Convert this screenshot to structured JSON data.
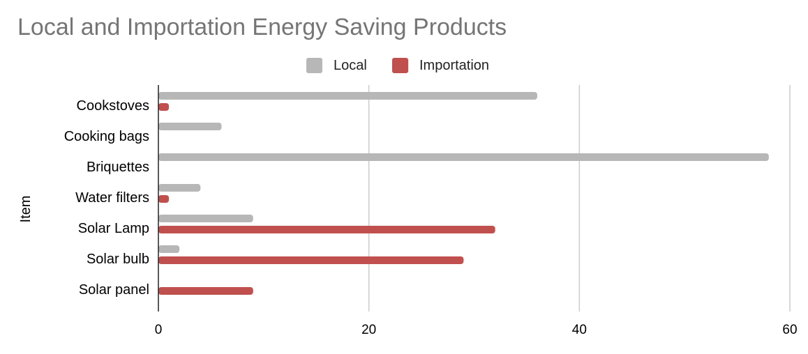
{
  "chart_data": {
    "type": "bar",
    "orientation": "horizontal",
    "title": "Local and Importation Energy Saving Products",
    "ylabel": "Item",
    "xlabel": "",
    "categories": [
      "Cookstoves",
      "Cooking bags",
      "Briquettes",
      "Water filters",
      "Solar Lamp",
      "Solar bulb",
      "Solar panel"
    ],
    "series": [
      {
        "name": "Local",
        "color": "#b7b7b7",
        "values": [
          36,
          6,
          58,
          4,
          9,
          2,
          0
        ]
      },
      {
        "name": "Importation",
        "color": "#c0504d",
        "values": [
          1,
          0,
          0,
          1,
          32,
          29,
          9
        ]
      }
    ],
    "xlim": [
      0,
      60
    ],
    "xticks": [
      "0",
      "20",
      "40",
      "60"
    ],
    "grid": "vertical",
    "legend": "top-center"
  }
}
